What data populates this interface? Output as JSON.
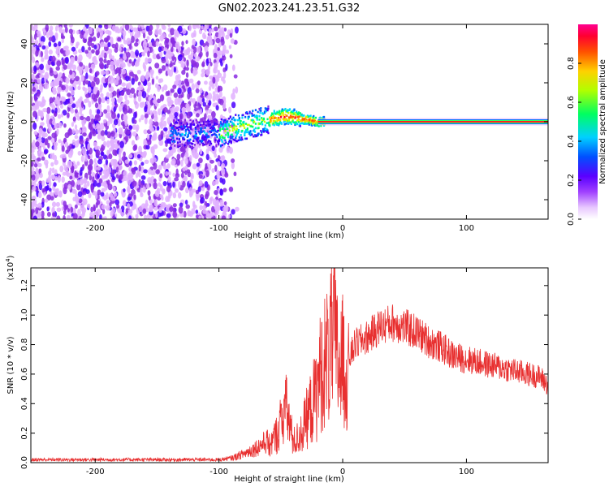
{
  "title": "GN02.2023.241.23.51.G32",
  "chart_data": [
    {
      "type": "heatmap",
      "xlabel": "Height of straight line (km)",
      "ylabel": "Frequency (Hz)",
      "xlim": [
        -252,
        166
      ],
      "ylim": [
        -50,
        50
      ],
      "xticks": [
        -200,
        -100,
        0,
        100
      ],
      "yticks": [
        -40,
        -20,
        0,
        20,
        40
      ],
      "colorbar": {
        "label": "Normalized spectral amplitude",
        "range": [
          0,
          1
        ],
        "ticks": [
          "0.0",
          "0.2",
          "0.4",
          "0.6",
          "0.8"
        ],
        "colors": [
          "#ffffff",
          "#e0b0ff",
          "#8a2be2",
          "#4b00ff",
          "#0060ff",
          "#00d8ff",
          "#00ff70",
          "#c8ff00",
          "#ffd000",
          "#ff6000",
          "#ff0030",
          "#ff0090"
        ]
      },
      "features": {
        "noise_region_end_km": -95,
        "signal_start_km": -140,
        "tone_frequency_hz": 0,
        "tone_center_offset_hz": [
          [
            -140,
            -6
          ],
          [
            -100,
            -6
          ],
          [
            -80,
            -2
          ],
          [
            -60,
            1
          ],
          [
            -45,
            3
          ],
          [
            -30,
            1
          ],
          [
            -20,
            0
          ],
          [
            166,
            0
          ]
        ]
      }
    },
    {
      "type": "line",
      "xlabel": "Height of straight line (km)",
      "ylabel": "SNR (10 * v/v)",
      "scale_label": "(x10",
      "scale_exponent": "4",
      "scale_close": ")",
      "xlim": [
        -252,
        166
      ],
      "ylim": [
        0,
        1.32
      ],
      "xticks": [
        -200,
        -100,
        0,
        100
      ],
      "yticks": [
        "0.0",
        "0.2",
        "0.4",
        "0.6",
        "0.8",
        "1.0",
        "1.2"
      ],
      "series": [
        {
          "name": "SNR",
          "color": "#e83030",
          "envelope": [
            [
              -252,
              0.02
            ],
            [
              -100,
              0.02
            ],
            [
              -90,
              0.03
            ],
            [
              -80,
              0.06
            ],
            [
              -70,
              0.1
            ],
            [
              -60,
              0.15
            ],
            [
              -52,
              0.3
            ],
            [
              -47,
              0.55
            ],
            [
              -44,
              0.45
            ],
            [
              -40,
              0.2
            ],
            [
              -35,
              0.25
            ],
            [
              -30,
              0.4
            ],
            [
              -25,
              0.55
            ],
            [
              -20,
              0.7
            ],
            [
              -15,
              0.85
            ],
            [
              -10,
              0.95
            ],
            [
              -7,
              1.1
            ],
            [
              -4,
              0.85
            ],
            [
              0,
              0.85
            ],
            [
              5,
              0.7
            ],
            [
              10,
              0.8
            ],
            [
              20,
              0.85
            ],
            [
              30,
              0.92
            ],
            [
              40,
              0.95
            ],
            [
              50,
              0.92
            ],
            [
              60,
              0.88
            ],
            [
              70,
              0.82
            ],
            [
              80,
              0.78
            ],
            [
              90,
              0.72
            ],
            [
              100,
              0.7
            ],
            [
              110,
              0.68
            ],
            [
              120,
              0.66
            ],
            [
              130,
              0.64
            ],
            [
              140,
              0.62
            ],
            [
              150,
              0.6
            ],
            [
              160,
              0.58
            ],
            [
              166,
              0.52
            ]
          ]
        }
      ]
    }
  ]
}
